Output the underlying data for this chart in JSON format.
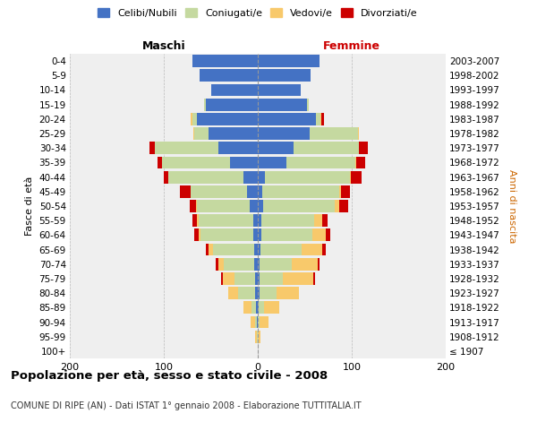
{
  "age_groups": [
    "100+",
    "95-99",
    "90-94",
    "85-89",
    "80-84",
    "75-79",
    "70-74",
    "65-69",
    "60-64",
    "55-59",
    "50-54",
    "45-49",
    "40-44",
    "35-39",
    "30-34",
    "25-29",
    "20-24",
    "15-19",
    "10-14",
    "5-9",
    "0-4"
  ],
  "birth_years": [
    "≤ 1907",
    "1908-1912",
    "1913-1917",
    "1918-1922",
    "1923-1927",
    "1928-1932",
    "1933-1937",
    "1938-1942",
    "1943-1947",
    "1948-1952",
    "1953-1957",
    "1958-1962",
    "1963-1967",
    "1968-1972",
    "1973-1977",
    "1978-1982",
    "1983-1987",
    "1988-1992",
    "1993-1997",
    "1998-2002",
    "2003-2007"
  ],
  "maschi_celibi": [
    0,
    0,
    1,
    2,
    3,
    3,
    4,
    4,
    5,
    5,
    9,
    11,
    15,
    30,
    42,
    52,
    65,
    55,
    50,
    62,
    70
  ],
  "maschi_coniugati": [
    0,
    1,
    2,
    5,
    18,
    22,
    32,
    44,
    56,
    58,
    56,
    60,
    80,
    72,
    68,
    16,
    5,
    2,
    0,
    0,
    0
  ],
  "maschi_vedovi": [
    0,
    2,
    5,
    8,
    10,
    12,
    6,
    4,
    2,
    2,
    1,
    0,
    0,
    0,
    0,
    1,
    1,
    0,
    0,
    0,
    0
  ],
  "maschi_divorziati": [
    0,
    0,
    0,
    0,
    0,
    2,
    3,
    3,
    5,
    5,
    6,
    12,
    5,
    5,
    5,
    0,
    0,
    0,
    0,
    0,
    0
  ],
  "femmine_nubili": [
    0,
    0,
    0,
    1,
    2,
    2,
    2,
    3,
    4,
    4,
    6,
    5,
    8,
    30,
    38,
    55,
    62,
    52,
    46,
    56,
    66
  ],
  "femmine_coniugate": [
    0,
    0,
    2,
    6,
    18,
    25,
    34,
    44,
    54,
    56,
    76,
    82,
    90,
    74,
    70,
    52,
    5,
    2,
    0,
    0,
    0
  ],
  "femmine_vedove": [
    0,
    3,
    9,
    16,
    24,
    32,
    28,
    22,
    14,
    9,
    5,
    2,
    1,
    1,
    0,
    1,
    1,
    0,
    0,
    0,
    0
  ],
  "femmine_divorziate": [
    0,
    0,
    0,
    0,
    0,
    2,
    2,
    3,
    5,
    5,
    9,
    9,
    11,
    9,
    9,
    0,
    2,
    0,
    0,
    0,
    0
  ],
  "colors": {
    "celibi": "#4472C4",
    "coniugati": "#C5D9A0",
    "vedovi": "#F8C96B",
    "divorziati": "#CC0000"
  },
  "xlim": 200,
  "title": "Popolazione per età, sesso e stato civile - 2008",
  "subtitle": "COMUNE DI RIPE (AN) - Dati ISTAT 1° gennaio 2008 - Elaborazione TUTTITALIA.IT",
  "ylabel_left": "Fasce di età",
  "ylabel_right": "Anni di nascita",
  "xlabel_left": "Maschi",
  "xlabel_right": "Femmine",
  "bg_color": "#efefef",
  "legend_labels": [
    "Celibi/Nubili",
    "Coniugati/e",
    "Vedovi/e",
    "Divorziati/e"
  ]
}
